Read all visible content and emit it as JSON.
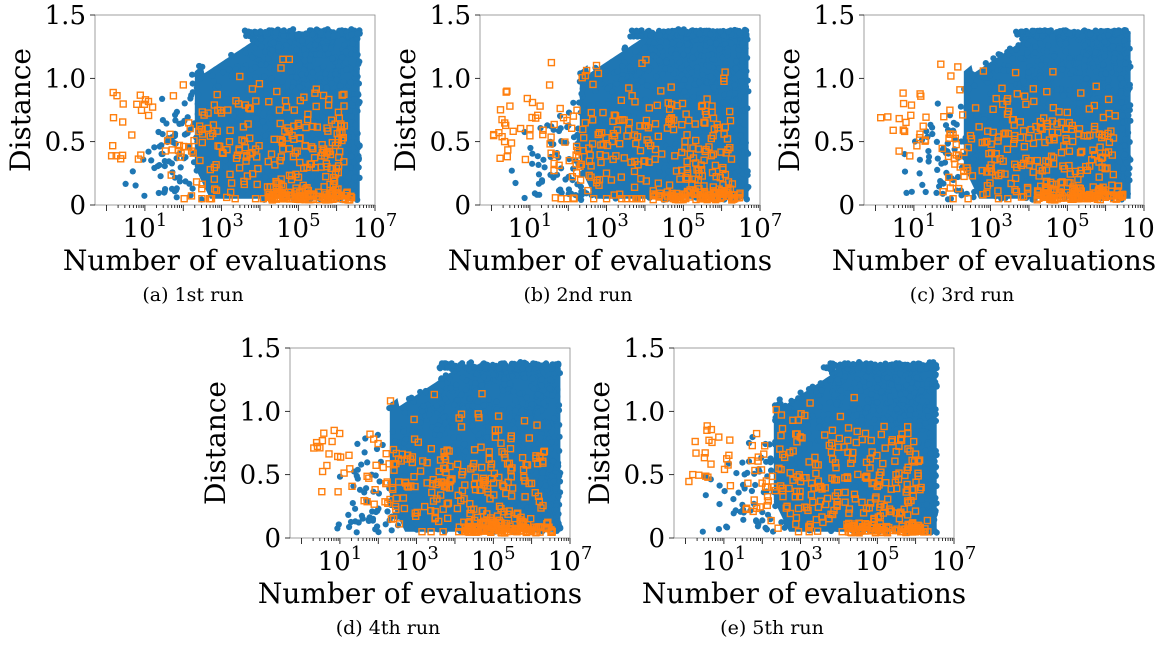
{
  "figure": {
    "colors": {
      "evaluations": "#1f77b4",
      "selected": "#ff7f0e",
      "axes": "#000000"
    },
    "panels": [
      {
        "caption": "(a) 1st run",
        "seed": 11,
        "xmax_exp": 6.6,
        "spread": 1.0
      },
      {
        "caption": "(b) 2nd run",
        "seed": 23,
        "xmax_exp": 6.7,
        "spread": 1.05
      },
      {
        "caption": "(c) 3rd run",
        "seed": 37,
        "xmax_exp": 6.65,
        "spread": 1.0
      },
      {
        "caption": "(d) 4th run",
        "seed": 53,
        "xmax_exp": 6.75,
        "spread": 0.95
      },
      {
        "caption": "(e) 5th run",
        "seed": 71,
        "xmax_exp": 6.55,
        "spread": 1.0
      }
    ]
  },
  "chart_data": [
    {
      "type": "scatter",
      "title": "(a) 1st run",
      "xlabel": "Number of evaluations",
      "ylabel": "Distance",
      "xscale": "log",
      "xlim": [
        0.5,
        10000000
      ],
      "ylim": [
        0,
        1.5
      ],
      "xticks": [
        "10^1",
        "10^3",
        "10^5",
        "10^7"
      ],
      "yticks": [
        "0",
        "0.5",
        "1.0",
        "1.5"
      ],
      "grid": false,
      "series": [
        {
          "marker": "filled-circle",
          "color": "#1f77b4",
          "description_range": {
            "x": [
              2,
              4000000
            ],
            "y": [
              0.03,
              1.39
            ]
          }
        },
        {
          "marker": "open-square",
          "color": "#ff7f0e",
          "description_range": {
            "x": [
              1,
              4000000
            ],
            "y": [
              0.03,
              1.1
            ]
          }
        }
      ]
    },
    {
      "type": "scatter",
      "title": "(b) 2nd run",
      "xlabel": "Number of evaluations",
      "ylabel": "Distance",
      "xscale": "log",
      "xlim": [
        0.5,
        10000000
      ],
      "ylim": [
        0,
        1.5
      ],
      "xticks": [
        "10^1",
        "10^3",
        "10^5",
        "10^7"
      ],
      "yticks": [
        "0",
        "0.5",
        "1.0",
        "1.5"
      ],
      "grid": false,
      "series": [
        {
          "marker": "filled-circle",
          "color": "#1f77b4",
          "description_range": {
            "x": [
              2,
              5000000
            ],
            "y": [
              0.03,
              1.39
            ]
          }
        },
        {
          "marker": "open-square",
          "color": "#ff7f0e",
          "description_range": {
            "x": [
              1,
              5000000
            ],
            "y": [
              0.03,
              1.2
            ]
          }
        }
      ]
    },
    {
      "type": "scatter",
      "title": "(c) 3rd run",
      "xlabel": "Number of evaluations",
      "ylabel": "Distance",
      "xscale": "log",
      "xlim": [
        0.5,
        10000000
      ],
      "ylim": [
        0,
        1.5
      ],
      "xticks": [
        "10^1",
        "10^3",
        "10^5",
        "10^7"
      ],
      "yticks": [
        "0",
        "0.5",
        "1.0",
        "1.5"
      ],
      "grid": false,
      "series": [
        {
          "marker": "filled-circle",
          "color": "#1f77b4",
          "description_range": {
            "x": [
              2,
              4500000
            ],
            "y": [
              0.03,
              1.39
            ]
          }
        },
        {
          "marker": "open-square",
          "color": "#ff7f0e",
          "description_range": {
            "x": [
              1,
              4500000
            ],
            "y": [
              0.03,
              1.2
            ]
          }
        }
      ]
    },
    {
      "type": "scatter",
      "title": "(d) 4th run",
      "xlabel": "Number of evaluations",
      "ylabel": "Distance",
      "xscale": "log",
      "xlim": [
        0.5,
        10000000
      ],
      "ylim": [
        0,
        1.5
      ],
      "xticks": [
        "10^1",
        "10^3",
        "10^5",
        "10^7"
      ],
      "yticks": [
        "0",
        "0.5",
        "1.0",
        "1.5"
      ],
      "grid": false,
      "series": [
        {
          "marker": "filled-circle",
          "color": "#1f77b4",
          "description_range": {
            "x": [
              2,
              5500000
            ],
            "y": [
              0.03,
              1.39
            ]
          }
        },
        {
          "marker": "open-square",
          "color": "#ff7f0e",
          "description_range": {
            "x": [
              1,
              5500000
            ],
            "y": [
              0.03,
              1.15
            ]
          }
        }
      ]
    },
    {
      "type": "scatter",
      "title": "(e) 5th run",
      "xlabel": "Number of evaluations",
      "ylabel": "Distance",
      "xscale": "log",
      "xlim": [
        0.5,
        10000000
      ],
      "ylim": [
        0,
        1.5
      ],
      "xticks": [
        "10^1",
        "10^3",
        "10^5",
        "10^7"
      ],
      "yticks": [
        "0",
        "0.5",
        "1.0",
        "1.5"
      ],
      "grid": false,
      "series": [
        {
          "marker": "filled-circle",
          "color": "#1f77b4",
          "description_range": {
            "x": [
              2,
              3500000
            ],
            "y": [
              0.03,
              1.39
            ]
          }
        },
        {
          "marker": "open-square",
          "color": "#ff7f0e",
          "description_range": {
            "x": [
              1,
              3500000
            ],
            "y": [
              0.03,
              1.2
            ]
          }
        }
      ]
    }
  ]
}
